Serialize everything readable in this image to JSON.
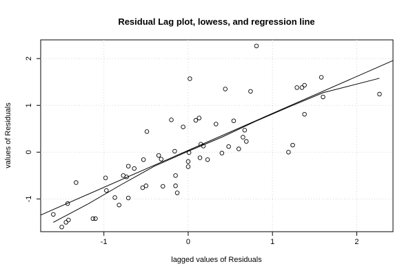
{
  "chart_data": {
    "type": "scatter",
    "title": "Residual Lag plot, lowess, and regression line",
    "xlabel": "lagged values of Residuals",
    "ylabel": "values of Residuals",
    "xlim": [
      -1.75,
      2.43
    ],
    "ylim": [
      -1.7,
      2.4
    ],
    "x_ticks": [
      -1,
      0,
      1,
      2
    ],
    "y_ticks": [
      -1,
      0,
      1,
      2
    ],
    "grid": true,
    "points": [
      [
        -1.6,
        -1.33
      ],
      [
        -1.5,
        -1.6
      ],
      [
        -1.45,
        -1.5
      ],
      [
        -1.43,
        -1.1
      ],
      [
        -1.42,
        -1.45
      ],
      [
        -1.33,
        -0.65
      ],
      [
        -1.13,
        -1.42
      ],
      [
        -1.1,
        -1.42
      ],
      [
        -0.98,
        -0.55
      ],
      [
        -0.97,
        -0.82
      ],
      [
        -0.87,
        -0.97
      ],
      [
        -0.82,
        -1.13
      ],
      [
        -0.77,
        -0.5
      ],
      [
        -0.73,
        -0.53
      ],
      [
        -0.71,
        -0.98
      ],
      [
        -0.71,
        -0.3
      ],
      [
        -0.64,
        -0.35
      ],
      [
        -0.54,
        -0.76
      ],
      [
        -0.53,
        -0.16
      ],
      [
        -0.5,
        -0.72
      ],
      [
        -0.49,
        0.44
      ],
      [
        -0.35,
        -0.07
      ],
      [
        -0.32,
        -0.15
      ],
      [
        -0.3,
        -0.73
      ],
      [
        -0.2,
        0.69
      ],
      [
        -0.16,
        0.02
      ],
      [
        -0.15,
        -0.72
      ],
      [
        -0.15,
        -0.5
      ],
      [
        -0.13,
        -0.87
      ],
      [
        -0.06,
        0.54
      ],
      [
        0.0,
        -0.2
      ],
      [
        0.0,
        -0.31
      ],
      [
        0.01,
        -0.01
      ],
      [
        0.02,
        1.57
      ],
      [
        0.09,
        0.68
      ],
      [
        0.13,
        0.73
      ],
      [
        0.14,
        -0.12
      ],
      [
        0.15,
        0.17
      ],
      [
        0.18,
        0.13
      ],
      [
        0.23,
        -0.16
      ],
      [
        0.33,
        0.6
      ],
      [
        0.4,
        -0.02
      ],
      [
        0.44,
        1.35
      ],
      [
        0.48,
        0.12
      ],
      [
        0.54,
        0.67
      ],
      [
        0.6,
        0.07
      ],
      [
        0.65,
        0.32
      ],
      [
        0.67,
        0.47
      ],
      [
        0.69,
        0.23
      ],
      [
        0.74,
        1.3
      ],
      [
        0.81,
        2.27
      ],
      [
        1.19,
        0.0
      ],
      [
        1.24,
        0.15
      ],
      [
        1.29,
        1.38
      ],
      [
        1.35,
        1.38
      ],
      [
        1.38,
        0.81
      ],
      [
        1.38,
        1.43
      ],
      [
        1.58,
        1.6
      ],
      [
        1.6,
        1.18
      ],
      [
        2.27,
        1.24
      ]
    ],
    "regression_line": {
      "intercept": 0.038,
      "slope": 0.79
    },
    "lowess_line": [
      [
        -1.6,
        -1.5
      ],
      [
        -1.2,
        -1.12
      ],
      [
        -0.8,
        -0.7
      ],
      [
        -0.4,
        -0.3
      ],
      [
        0.0,
        0.02
      ],
      [
        0.4,
        0.32
      ],
      [
        0.8,
        0.66
      ],
      [
        1.2,
        0.97
      ],
      [
        1.6,
        1.27
      ],
      [
        2.27,
        1.58
      ]
    ]
  }
}
